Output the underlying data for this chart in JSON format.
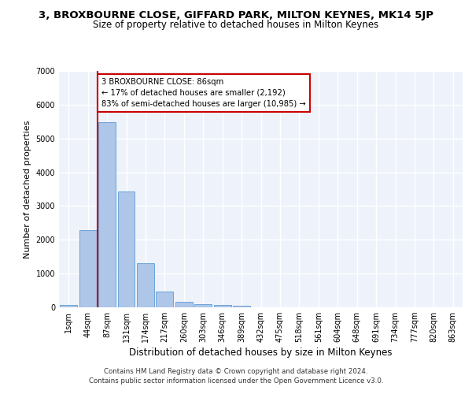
{
  "title": "3, BROXBOURNE CLOSE, GIFFARD PARK, MILTON KEYNES, MK14 5JP",
  "subtitle": "Size of property relative to detached houses in Milton Keynes",
  "xlabel": "Distribution of detached houses by size in Milton Keynes",
  "ylabel": "Number of detached properties",
  "footer_line1": "Contains HM Land Registry data © Crown copyright and database right 2024.",
  "footer_line2": "Contains public sector information licensed under the Open Government Licence v3.0.",
  "categories": [
    "1sqm",
    "44sqm",
    "87sqm",
    "131sqm",
    "174sqm",
    "217sqm",
    "260sqm",
    "303sqm",
    "346sqm",
    "389sqm",
    "432sqm",
    "475sqm",
    "518sqm",
    "561sqm",
    "604sqm",
    "648sqm",
    "691sqm",
    "734sqm",
    "777sqm",
    "820sqm",
    "863sqm"
  ],
  "values": [
    75,
    2280,
    5480,
    3430,
    1310,
    460,
    160,
    95,
    65,
    50,
    0,
    0,
    0,
    0,
    0,
    0,
    0,
    0,
    0,
    0,
    0
  ],
  "bar_color": "#aec6e8",
  "bar_edge_color": "#5b9bd5",
  "background_color": "#eef3fb",
  "grid_color": "#ffffff",
  "annotation_box_text": "3 BROXBOURNE CLOSE: 86sqm\n← 17% of detached houses are smaller (2,192)\n83% of semi-detached houses are larger (10,985) →",
  "annotation_box_color": "#ffffff",
  "annotation_box_edge_color": "#cc0000",
  "marker_line_color": "#cc0000",
  "ylim": [
    0,
    7000
  ],
  "yticks": [
    0,
    1000,
    2000,
    3000,
    4000,
    5000,
    6000,
    7000
  ],
  "title_fontsize": 9.5,
  "subtitle_fontsize": 8.5,
  "axis_label_fontsize": 8,
  "tick_fontsize": 7,
  "footer_fontsize": 6.2
}
